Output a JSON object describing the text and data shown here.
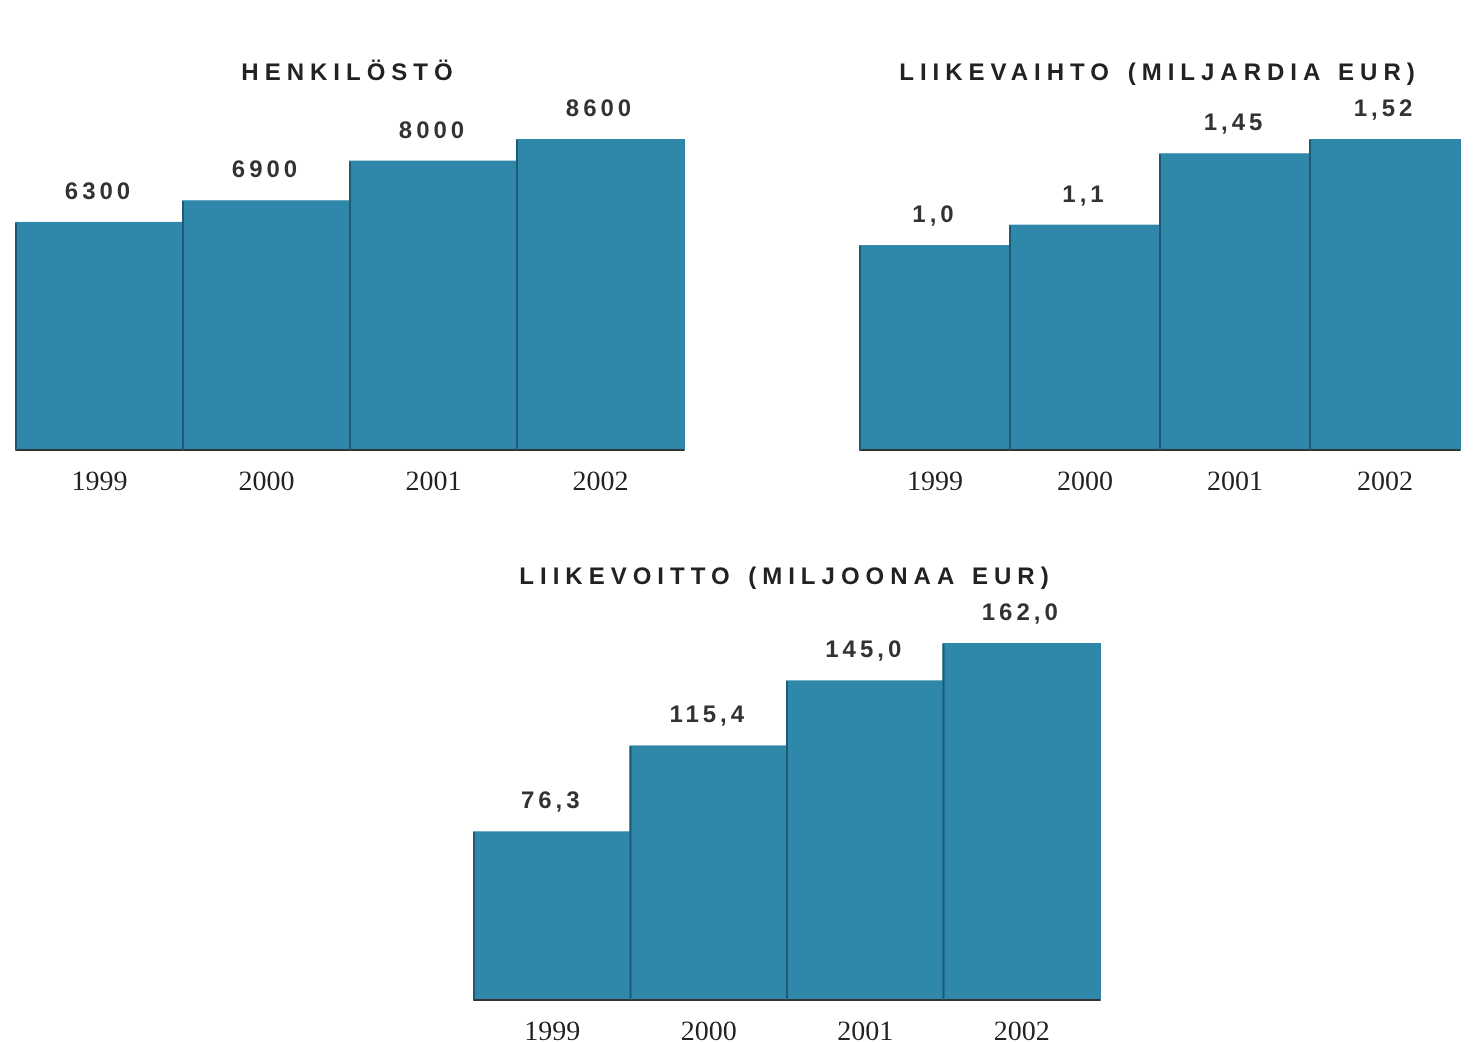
{
  "chart_data": [
    {
      "type": "bar",
      "title": "HENKILÖSTÖ",
      "categories": [
        "1999",
        "2000",
        "2001",
        "2002"
      ],
      "values": [
        6300,
        6900,
        8000,
        8600
      ],
      "value_labels": [
        "6300",
        "6900",
        "8000",
        "8600"
      ],
      "color": "#2f87aa"
    },
    {
      "type": "bar",
      "title": "LIIKEVAIHTO (MILJARDIA EUR)",
      "categories": [
        "1999",
        "2000",
        "2001",
        "2002"
      ],
      "values": [
        1.0,
        1.1,
        1.45,
        1.52
      ],
      "value_labels": [
        "1,0",
        "1,1",
        "1,45",
        "1,52"
      ],
      "color": "#2f87aa"
    },
    {
      "type": "bar",
      "title": "LIIKEVOITTO (MILJOONAA EUR)",
      "categories": [
        "1999",
        "2000",
        "2001",
        "2002"
      ],
      "values": [
        76.3,
        115.4,
        145.0,
        162.0
      ],
      "value_labels": [
        "76,3",
        "115,4",
        "145,0",
        "162,0"
      ],
      "color": "#2f87aa"
    }
  ]
}
